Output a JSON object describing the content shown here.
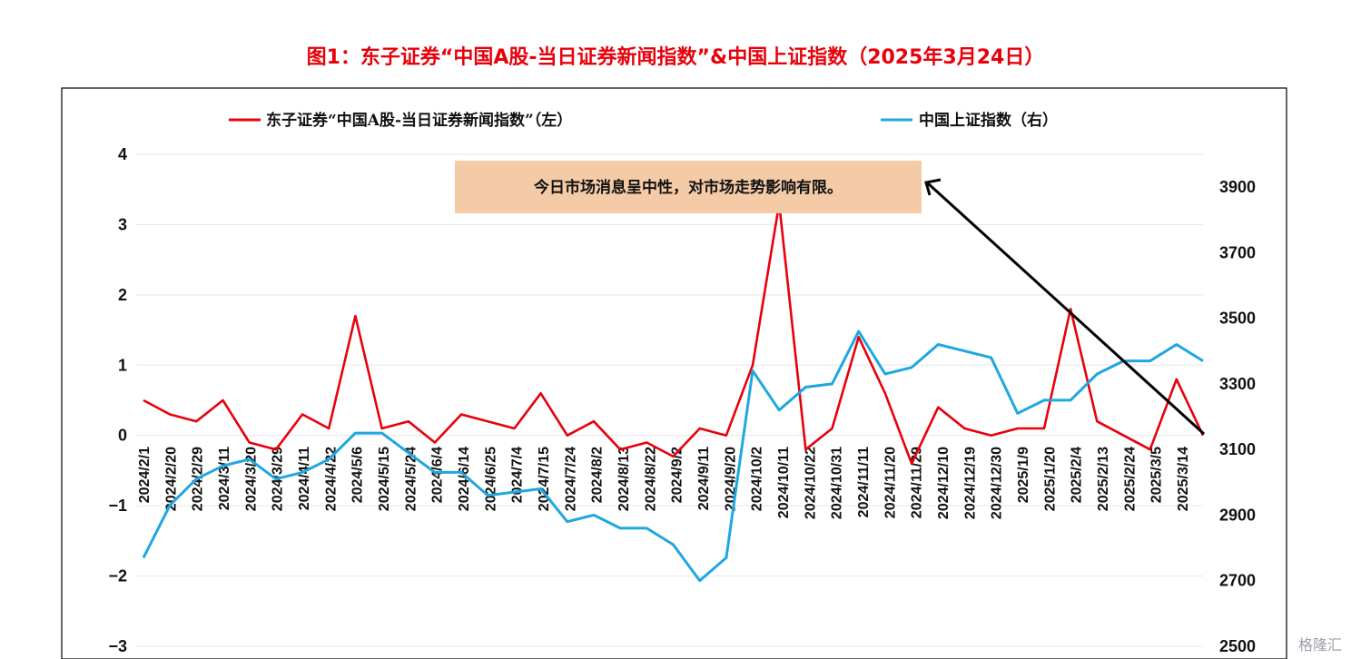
{
  "colors": {
    "title": "#e8000b",
    "left_series": "#e8000b",
    "right_series": "#1ea7e1",
    "note_bg": "#f5cba7",
    "frame": "#000000"
  },
  "watermark": "格隆汇",
  "chart_data": {
    "type": "line",
    "title": "图1：东子证券“中国A股-当日证券新闻指数”&中国上证指数（2025年3月24日）",
    "xlabel": "",
    "ylabel_left": "",
    "ylabel_right": "",
    "grid": true,
    "legend_position": "top",
    "y_left": {
      "lim": [
        -3,
        4
      ],
      "ticks": [
        "4",
        "3",
        "2",
        "1",
        "0",
        "−1",
        "−2",
        "−3"
      ]
    },
    "y_right": {
      "lim": [
        2500,
        3900
      ],
      "ticks": [
        "3900",
        "3700",
        "3500",
        "3300",
        "3100",
        "2900",
        "2700",
        "2500"
      ]
    },
    "x_tick_labels": [
      "2024/2/1",
      "2024/2/20",
      "2024/2/29",
      "2024/3/11",
      "2024/3/20",
      "2024/3/29",
      "2024/4/11",
      "2024/4/22",
      "2024/5/6",
      "2024/5/15",
      "2024/5/24",
      "2024/6/4",
      "2024/6/14",
      "2024/6/25",
      "2024/7/4",
      "2024/7/15",
      "2024/7/24",
      "2024/8/2",
      "2024/8/13",
      "2024/8/22",
      "2024/9/2",
      "2024/9/11",
      "2024/9/20",
      "2024/10/2",
      "2024/10/11",
      "2024/10/22",
      "2024/10/31",
      "2024/11/11",
      "2024/11/20",
      "2024/11/29",
      "2024/12/10",
      "2024/12/19",
      "2024/12/30",
      "2025/1/9",
      "2025/1/20",
      "2025/2/4",
      "2025/2/13",
      "2025/2/24",
      "2025/3/5",
      "2025/3/14"
    ],
    "series": [
      {
        "name": "东子证券“中国A股-当日证券新闻指数”（左）",
        "axis": "left",
        "x": [
          "2024/2/1",
          "2024/2/20",
          "2024/2/29",
          "2024/3/11",
          "2024/3/20",
          "2024/3/29",
          "2024/4/11",
          "2024/4/22",
          "2024/5/6",
          "2024/5/15",
          "2024/5/24",
          "2024/6/4",
          "2024/6/14",
          "2024/6/25",
          "2024/7/4",
          "2024/7/15",
          "2024/7/24",
          "2024/8/2",
          "2024/8/13",
          "2024/8/22",
          "2024/9/2",
          "2024/9/11",
          "2024/9/20",
          "2024/10/2",
          "2024/10/11",
          "2024/10/22",
          "2024/10/31",
          "2024/11/11",
          "2024/11/20",
          "2024/11/29",
          "2024/12/10",
          "2024/12/19",
          "2024/12/30",
          "2025/1/9",
          "2025/1/20",
          "2025/2/4",
          "2025/2/13",
          "2025/2/24",
          "2025/3/5",
          "2025/3/14",
          "2025/3/24"
        ],
        "values": [
          0.5,
          0.3,
          0.2,
          0.5,
          -0.1,
          -0.2,
          0.3,
          0.1,
          1.7,
          0.1,
          0.2,
          -0.1,
          0.3,
          0.2,
          0.1,
          0.6,
          0.0,
          0.2,
          -0.2,
          -0.1,
          -0.3,
          0.1,
          0.0,
          1.0,
          3.3,
          -0.2,
          0.1,
          1.4,
          0.6,
          -0.4,
          0.4,
          0.1,
          0.0,
          0.1,
          0.1,
          1.8,
          0.2,
          0.0,
          -0.2,
          0.8,
          0.0
        ]
      },
      {
        "name": "中国上证指数（右）",
        "axis": "right",
        "x": [
          "2024/2/1",
          "2024/2/20",
          "2024/2/29",
          "2024/3/11",
          "2024/3/20",
          "2024/3/29",
          "2024/4/11",
          "2024/4/22",
          "2024/5/6",
          "2024/5/15",
          "2024/5/24",
          "2024/6/4",
          "2024/6/14",
          "2024/6/25",
          "2024/7/4",
          "2024/7/15",
          "2024/7/24",
          "2024/8/2",
          "2024/8/13",
          "2024/8/22",
          "2024/9/2",
          "2024/9/11",
          "2024/9/20",
          "2024/10/2",
          "2024/10/11",
          "2024/10/22",
          "2024/10/31",
          "2024/11/11",
          "2024/11/20",
          "2024/11/29",
          "2024/12/10",
          "2024/12/19",
          "2024/12/30",
          "2025/1/9",
          "2025/1/20",
          "2025/2/4",
          "2025/2/13",
          "2025/2/24",
          "2025/3/5",
          "2025/3/14",
          "2025/3/24"
        ],
        "values": [
          2770,
          2930,
          3010,
          3050,
          3070,
          3010,
          3030,
          3070,
          3150,
          3150,
          3090,
          3030,
          3030,
          2960,
          2970,
          2980,
          2880,
          2900,
          2860,
          2860,
          2810,
          2700,
          2770,
          3340,
          3220,
          3290,
          3300,
          3460,
          3330,
          3350,
          3420,
          3400,
          3380,
          3210,
          3250,
          3250,
          3330,
          3370,
          3370,
          3420,
          3370
        ]
      }
    ],
    "annotation": {
      "text": "今日市场消息呈中性，对市场走势影响有限。",
      "points_to": "2025/3/24"
    }
  }
}
